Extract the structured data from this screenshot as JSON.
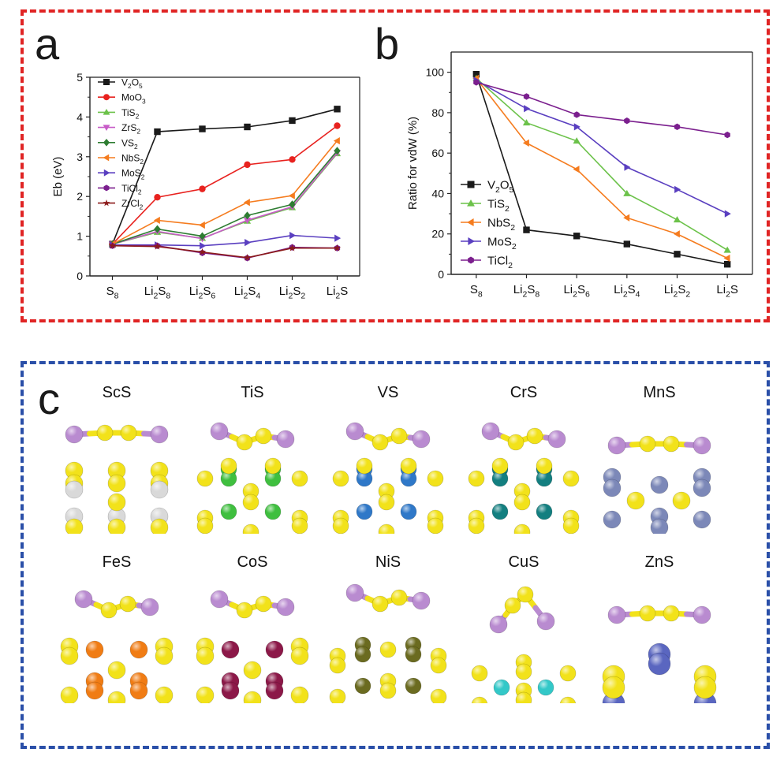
{
  "panels": {
    "a": "a",
    "b": "b",
    "c": "c"
  },
  "chart_data": [
    {
      "type": "line",
      "categories": [
        "S_8",
        "Li_2S_8",
        "Li_2S_6",
        "Li_2S_4",
        "Li_2S_2",
        "Li_2S"
      ],
      "ylabel": "E_b (eV)",
      "ylim": [
        0,
        5
      ],
      "yticks": [
        0,
        1,
        2,
        3,
        4,
        5
      ],
      "legend": "top-left",
      "series": [
        {
          "name": "V_2O_5",
          "color": "#1a1a1a",
          "marker": "square",
          "values": [
            0.8,
            3.63,
            3.7,
            3.75,
            3.91,
            4.2
          ]
        },
        {
          "name": "MoO_3",
          "color": "#e8221f",
          "marker": "circle",
          "values": [
            0.8,
            1.98,
            2.19,
            2.8,
            2.93,
            3.78
          ]
        },
        {
          "name": "TiS_2",
          "color": "#6cc24a",
          "marker": "triangle-up",
          "values": [
            0.8,
            1.1,
            0.95,
            1.38,
            1.72,
            3.08
          ]
        },
        {
          "name": "ZrS_2",
          "color": "#c75bc7",
          "marker": "triangle-down",
          "values": [
            0.8,
            1.12,
            0.94,
            1.4,
            1.74,
            3.1
          ]
        },
        {
          "name": "VS_2",
          "color": "#2e7d32",
          "marker": "diamond",
          "values": [
            0.8,
            1.18,
            1.0,
            1.52,
            1.8,
            3.15
          ]
        },
        {
          "name": "NbS_2",
          "color": "#f57c1f",
          "marker": "triangle-left",
          "values": [
            0.8,
            1.4,
            1.28,
            1.85,
            2.02,
            3.4
          ]
        },
        {
          "name": "MoS_2",
          "color": "#5a3fc0",
          "marker": "triangle-right",
          "values": [
            0.78,
            0.78,
            0.76,
            0.84,
            1.02,
            0.95
          ]
        },
        {
          "name": "TiCl_2",
          "color": "#7b1f8e",
          "marker": "hexagon",
          "values": [
            0.76,
            0.76,
            0.58,
            0.45,
            0.72,
            0.7
          ]
        },
        {
          "name": "ZrCl_2",
          "color": "#8b1a1a",
          "marker": "star",
          "values": [
            0.76,
            0.74,
            0.6,
            0.46,
            0.7,
            0.7
          ]
        }
      ]
    },
    {
      "type": "line",
      "categories": [
        "S_8",
        "Li_2S_8",
        "Li_2S_6",
        "Li_2S_4",
        "Li_2S_2",
        "Li_2S"
      ],
      "ylabel": "Ratio for vdW (%)",
      "ylim": [
        0,
        110
      ],
      "yticks": [
        0,
        20,
        40,
        60,
        80,
        100
      ],
      "legend": "bottom-left",
      "series": [
        {
          "name": "V_2O_5",
          "color": "#1a1a1a",
          "marker": "square",
          "values": [
            99,
            22,
            19,
            15,
            10,
            5
          ]
        },
        {
          "name": "TiS_2",
          "color": "#6cc24a",
          "marker": "triangle-up",
          "values": [
            97,
            75,
            66,
            40,
            27,
            12
          ]
        },
        {
          "name": "NbS_2",
          "color": "#f57c1f",
          "marker": "triangle-left",
          "values": [
            97,
            65,
            52,
            28,
            20,
            8
          ]
        },
        {
          "name": "MoS_2",
          "color": "#5a3fc0",
          "marker": "triangle-right",
          "values": [
            96,
            82,
            73,
            53,
            42,
            30
          ]
        },
        {
          "name": "TiCl_2",
          "color": "#7b1f8e",
          "marker": "hexagon",
          "values": [
            95,
            88,
            79,
            76,
            73,
            69
          ]
        }
      ]
    }
  ],
  "structures": [
    {
      "name": "ScS",
      "metal_color": "#d9d9d9",
      "style": "sc"
    },
    {
      "name": "TiS",
      "metal_color": "#3fbf3f",
      "style": "ti"
    },
    {
      "name": "VS",
      "metal_color": "#2f78c8",
      "style": "ti"
    },
    {
      "name": "CrS",
      "metal_color": "#137f80",
      "style": "ti"
    },
    {
      "name": "MnS",
      "metal_color": "#7c88b8",
      "style": "mn"
    },
    {
      "name": "FeS",
      "metal_color": "#f07c14",
      "style": "fe"
    },
    {
      "name": "CoS",
      "metal_color": "#8c1848",
      "style": "fe"
    },
    {
      "name": "NiS",
      "metal_color": "#6b6b20",
      "style": "ni"
    },
    {
      "name": "CuS",
      "metal_color": "#33c8c8",
      "style": "cu"
    },
    {
      "name": "ZnS",
      "metal_color": "#5a66c0",
      "style": "zn"
    }
  ],
  "colors": {
    "sulfur": "#f2e21a",
    "lithium": "#b98bd0",
    "frame_ab": "#e02424",
    "frame_c": "#2a4fa8"
  }
}
